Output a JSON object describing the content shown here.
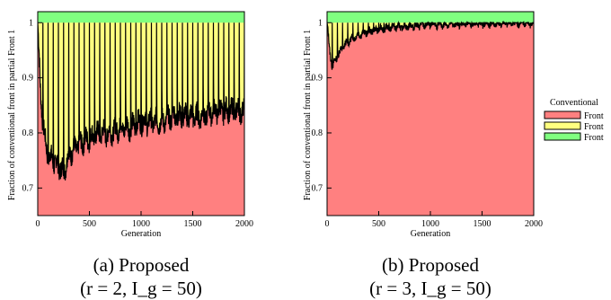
{
  "figure": {
    "colors": {
      "red": "#ff8080",
      "yellow": "#ffff80",
      "green": "#80ff80",
      "line": "#000000"
    },
    "legend": {
      "title": "Conventional",
      "items": [
        {
          "label": "Front",
          "color": "#ff8080"
        },
        {
          "label": "Front",
          "color": "#ffff80"
        },
        {
          "label": "Front",
          "color": "#80ff80"
        }
      ]
    },
    "captions": [
      {
        "line1": "(a) Proposed",
        "line2": "(r = 2, I_g = 50)"
      },
      {
        "line1": "(b) Proposed",
        "line2": "(r = 3, I_g = 50)"
      }
    ]
  },
  "chart_data": [
    {
      "type": "area",
      "title": "",
      "xlabel": "Generation",
      "ylabel": "Fraction of conventional front in partial Front 1",
      "xlim": [
        0,
        2000
      ],
      "ylim": [
        0.65,
        1.02
      ],
      "xticks": [
        0,
        500,
        1000,
        1500,
        2000
      ],
      "yticks": [
        0.7,
        0.8,
        0.9,
        1
      ],
      "series": [
        {
          "x": [
            0,
            25,
            50,
            75,
            100,
            150,
            200,
            250,
            300,
            350,
            400,
            500,
            600,
            700,
            800,
            900,
            1000,
            1100,
            1200,
            1300,
            1400,
            1500,
            1600,
            1700,
            1800,
            1900,
            2000
          ],
          "values": [
            1.0,
            0.88,
            0.82,
            0.78,
            0.76,
            0.75,
            0.74,
            0.73,
            0.76,
            0.77,
            0.78,
            0.79,
            0.8,
            0.8,
            0.81,
            0.81,
            0.82,
            0.82,
            0.82,
            0.83,
            0.83,
            0.83,
            0.83,
            0.84,
            0.84,
            0.84,
            0.84
          ]
        }
      ],
      "spike_period": 50
    },
    {
      "type": "area",
      "title": "",
      "xlabel": "Generation",
      "ylabel": "Fraction of conventional front in partial Front 1",
      "xlim": [
        0,
        2000
      ],
      "ylim": [
        0.65,
        1.02
      ],
      "xticks": [
        0,
        500,
        1000,
        1500,
        2000
      ],
      "yticks": [
        0.7,
        0.8,
        0.9,
        1
      ],
      "series": [
        {
          "x": [
            0,
            25,
            50,
            75,
            100,
            150,
            200,
            250,
            300,
            400,
            500,
            600,
            800,
            1000,
            1200,
            1400,
            1600,
            1800,
            2000
          ],
          "values": [
            1.0,
            0.95,
            0.92,
            0.93,
            0.94,
            0.955,
            0.965,
            0.972,
            0.978,
            0.984,
            0.988,
            0.991,
            0.994,
            0.996,
            0.997,
            0.998,
            0.998,
            0.999,
            0.999
          ]
        }
      ],
      "spike_period": 50
    }
  ]
}
